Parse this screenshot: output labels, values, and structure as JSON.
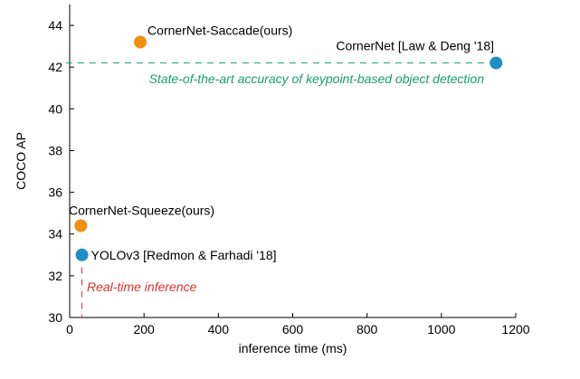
{
  "chart_data": {
    "type": "scatter",
    "title": "",
    "xlabel": "inference time (ms)",
    "ylabel": "COCO AP",
    "xlim": [
      0,
      1200
    ],
    "ylim": [
      30,
      45
    ],
    "xticks": [
      0,
      200,
      400,
      600,
      800,
      1000,
      1200
    ],
    "yticks": [
      30,
      32,
      34,
      36,
      38,
      40,
      42,
      44
    ],
    "grid": false,
    "points": [
      {
        "label": "CornerNet-Saccade(ours)",
        "x": 190,
        "y": 43.2,
        "color": "#ef8f12"
      },
      {
        "label": "CornerNet [Law & Deng '18]",
        "x": 1147,
        "y": 42.2,
        "color": "#1f8ec8"
      },
      {
        "label": "CornerNet-Squeeze(ours)",
        "x": 30,
        "y": 34.4,
        "color": "#ef8f12"
      },
      {
        "label": "YOLOv3 [Redmon & Farhadi '18]",
        "x": 33,
        "y": 33.0,
        "color": "#1f8ec8"
      }
    ],
    "reference_lines": [
      {
        "orientation": "horizontal",
        "value": 42.2,
        "color": "#1a9b74",
        "annotation": "State-of-the-art accuracy of keypoint-based object detection"
      },
      {
        "orientation": "vertical",
        "value": 33,
        "color": "#e0322b",
        "annotation": "Real-time inference"
      }
    ]
  }
}
